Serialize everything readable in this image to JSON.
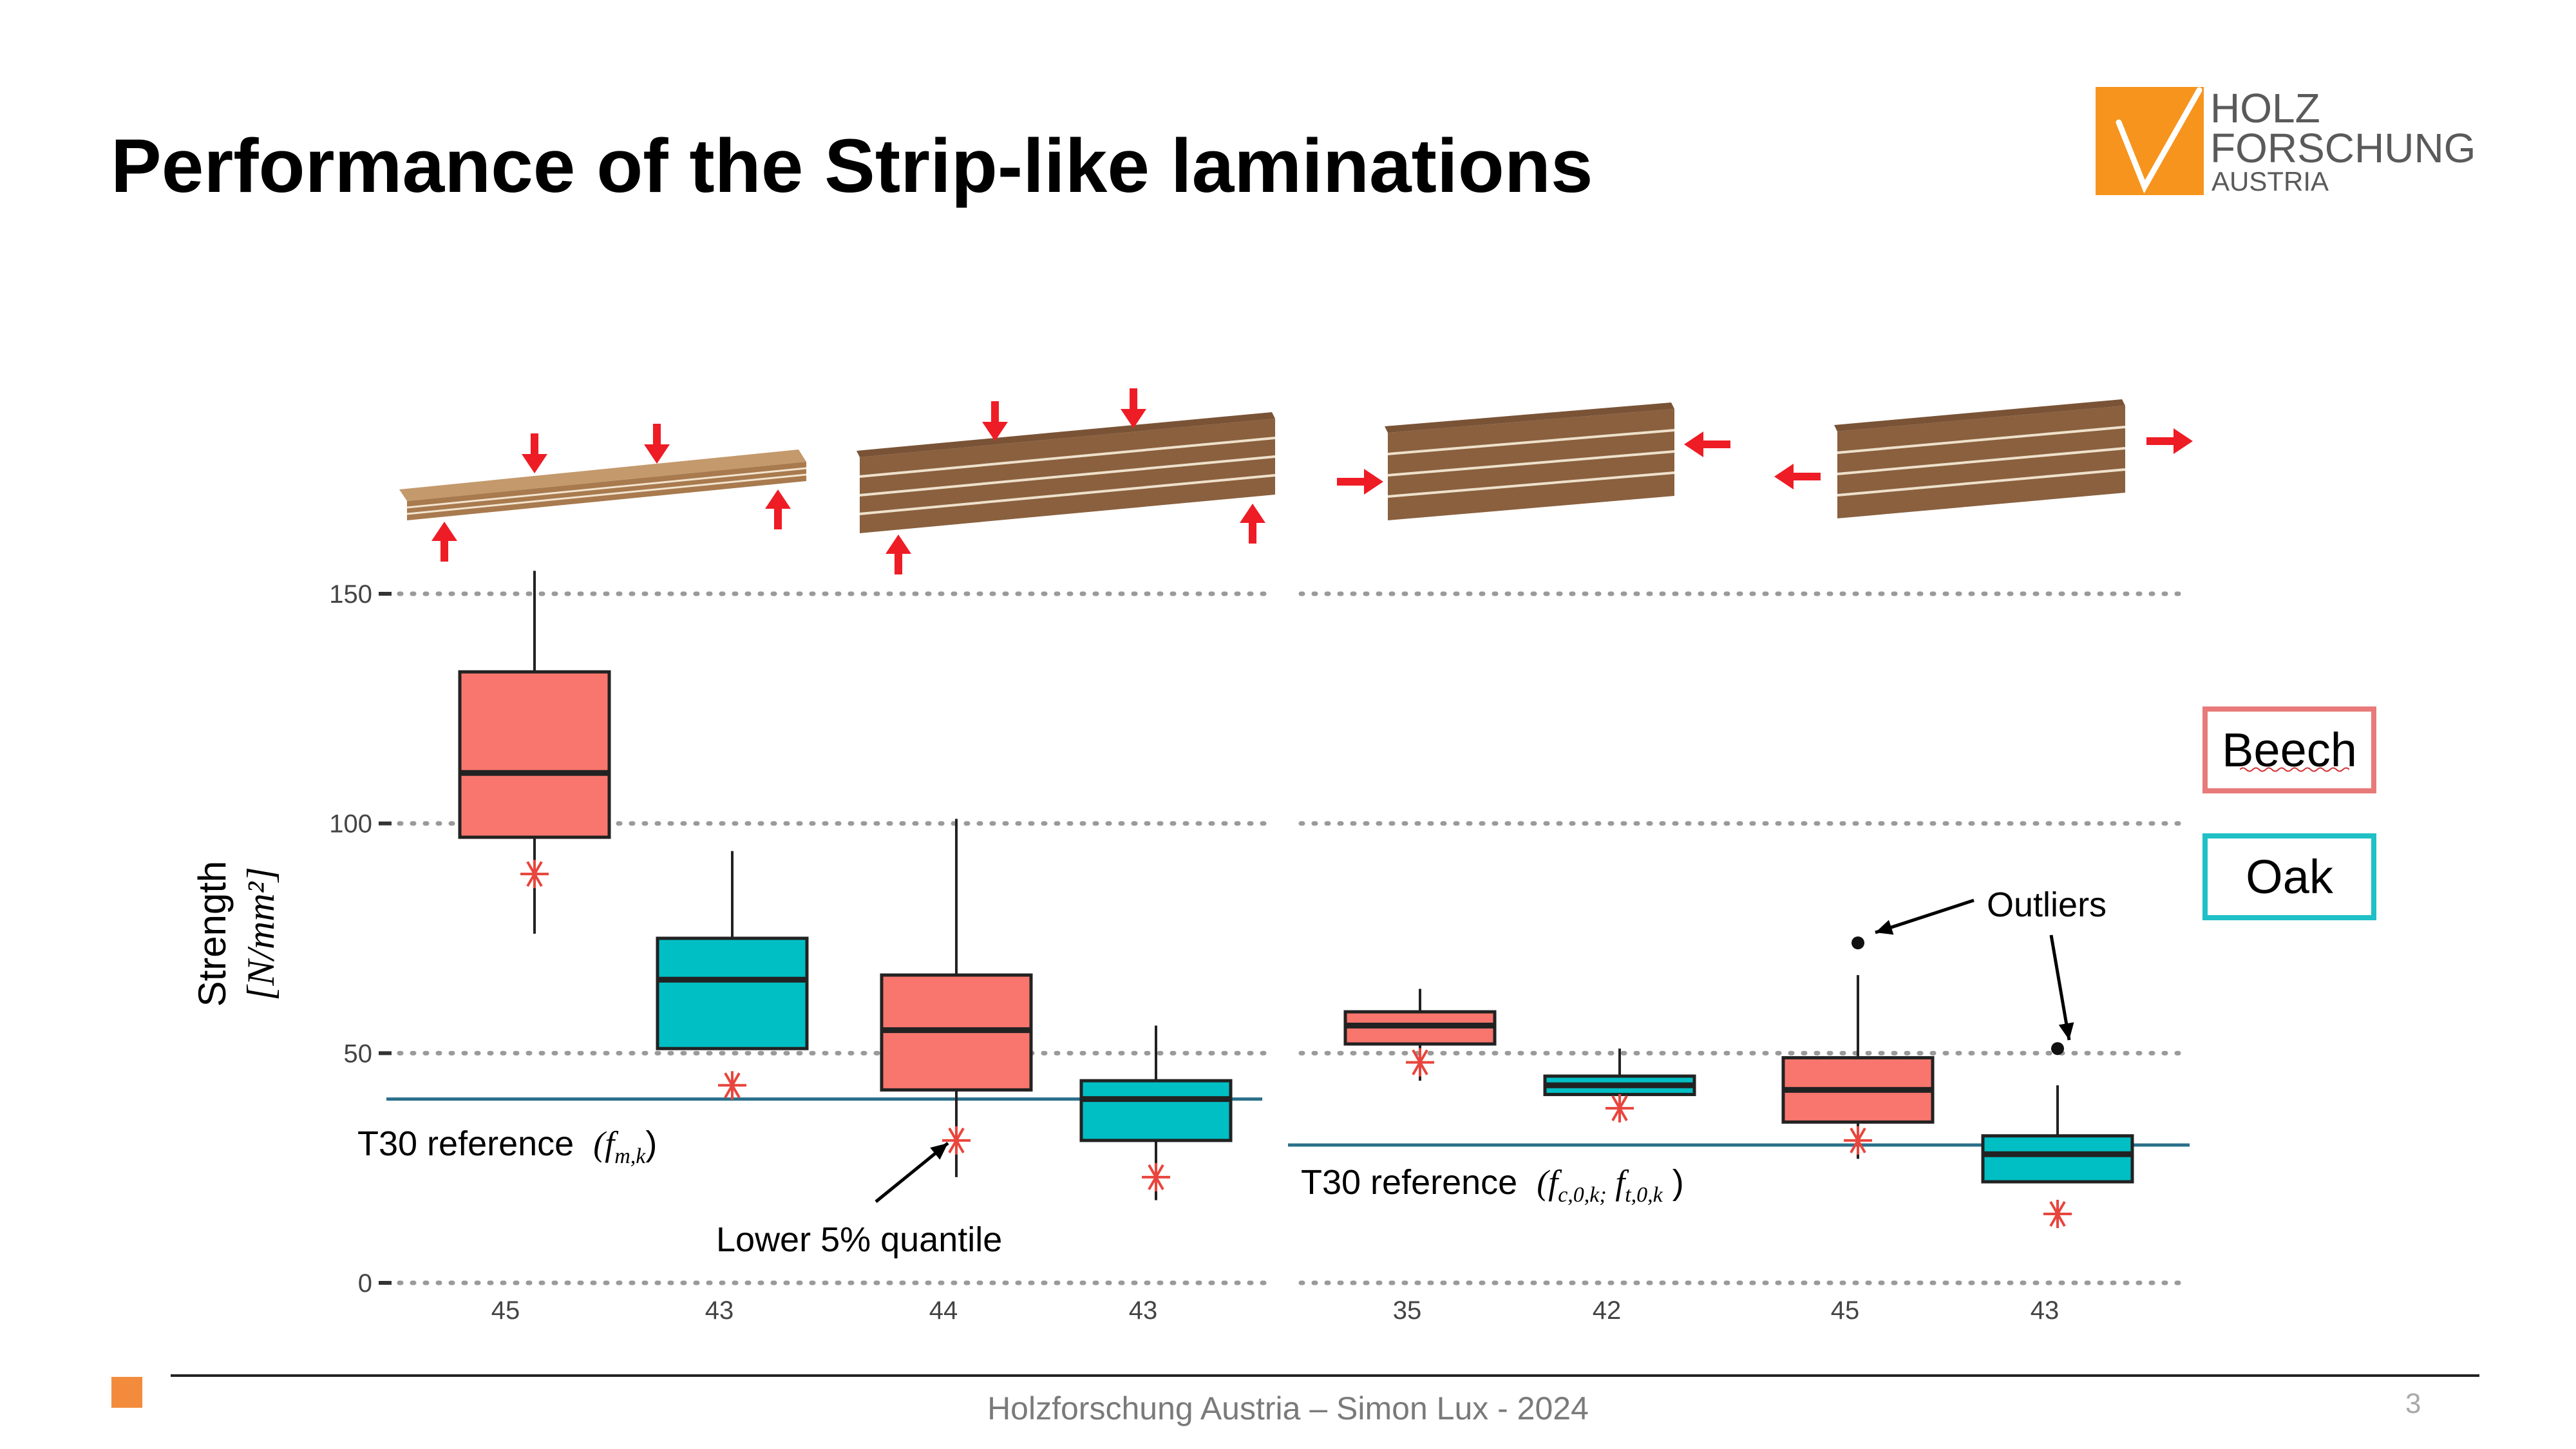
{
  "slide_title": "Performance of the Strip-like laminations",
  "logo": {
    "line1": "HOLZ",
    "line2": "FORSCHUNG",
    "line3": "AUSTRIA",
    "color": "#f7941d"
  },
  "footer": {
    "text": "Holzforschung Austria – Simon Lux - 2024",
    "page_number": "3"
  },
  "legend": [
    {
      "label": "Beech",
      "color": "#f8766d"
    },
    {
      "label": "Oak",
      "color": "#00bfc4"
    }
  ],
  "annotations": {
    "t30_left_label": "T30 reference",
    "t30_left_symbol": "(f",
    "t30_left_sub": "m,k",
    "t30_left_close": ")",
    "t30_right_label": "T30 reference",
    "t30_right_symbol": "(f",
    "t30_right_sub1": "c,0,k;",
    "t30_right_symbol2": " f",
    "t30_right_sub2": "t,0,k",
    "t30_right_close": " )",
    "lower_quantile": "Lower 5% quantile",
    "outliers": "Outliers"
  },
  "chart_data": {
    "type": "box",
    "ylabel": "Strength",
    "ylabel_unit": "[N/mm²]",
    "ylim": [
      0,
      160
    ],
    "yticks": [
      0,
      50,
      100,
      150
    ],
    "grid": "dotted horizontal",
    "panels": [
      {
        "reference_label": "T30 reference (f_m,k)",
        "reference_value": 40,
        "boxes": [
          {
            "n_label": "45",
            "species": "Beech",
            "whisker_low": 76,
            "q1": 97,
            "median": 111,
            "q3": 133,
            "whisker_high": 155,
            "lower_5pct": 89
          },
          {
            "n_label": "43",
            "species": "Oak",
            "whisker_low": 51,
            "q1": 51,
            "median": 66,
            "q3": 75,
            "whisker_high": 94,
            "lower_5pct": 43
          },
          {
            "n_label": "44",
            "species": "Beech",
            "whisker_low": 23,
            "q1": 42,
            "median": 55,
            "q3": 67,
            "whisker_high": 101,
            "lower_5pct": 31
          },
          {
            "n_label": "43",
            "species": "Oak",
            "whisker_low": 18,
            "q1": 31,
            "median": 40,
            "q3": 44,
            "whisker_high": 56,
            "lower_5pct": 23
          }
        ]
      },
      {
        "reference_label": "T30 reference (f_c,0,k; f_t,0,k)",
        "reference_value": 30,
        "boxes": [
          {
            "n_label": "35",
            "species": "Beech",
            "whisker_low": 44,
            "q1": 52,
            "median": 56,
            "q3": 59,
            "whisker_high": 64,
            "lower_5pct": 48
          },
          {
            "n_label": "42",
            "species": "Oak",
            "whisker_low": 40,
            "q1": 41,
            "median": 43,
            "q3": 45,
            "whisker_high": 51,
            "lower_5pct": 38
          },
          {
            "n_label": "45",
            "species": "Beech",
            "whisker_low": 27,
            "q1": 35,
            "median": 42,
            "q3": 49,
            "whisker_high": 67,
            "lower_5pct": 31,
            "outliers": [
              74
            ]
          },
          {
            "n_label": "43",
            "species": "Oak",
            "whisker_low": 22,
            "q1": 22,
            "median": 28,
            "q3": 32,
            "whisker_high": 43,
            "lower_5pct": 15,
            "outliers": [
              51
            ]
          }
        ]
      }
    ]
  }
}
